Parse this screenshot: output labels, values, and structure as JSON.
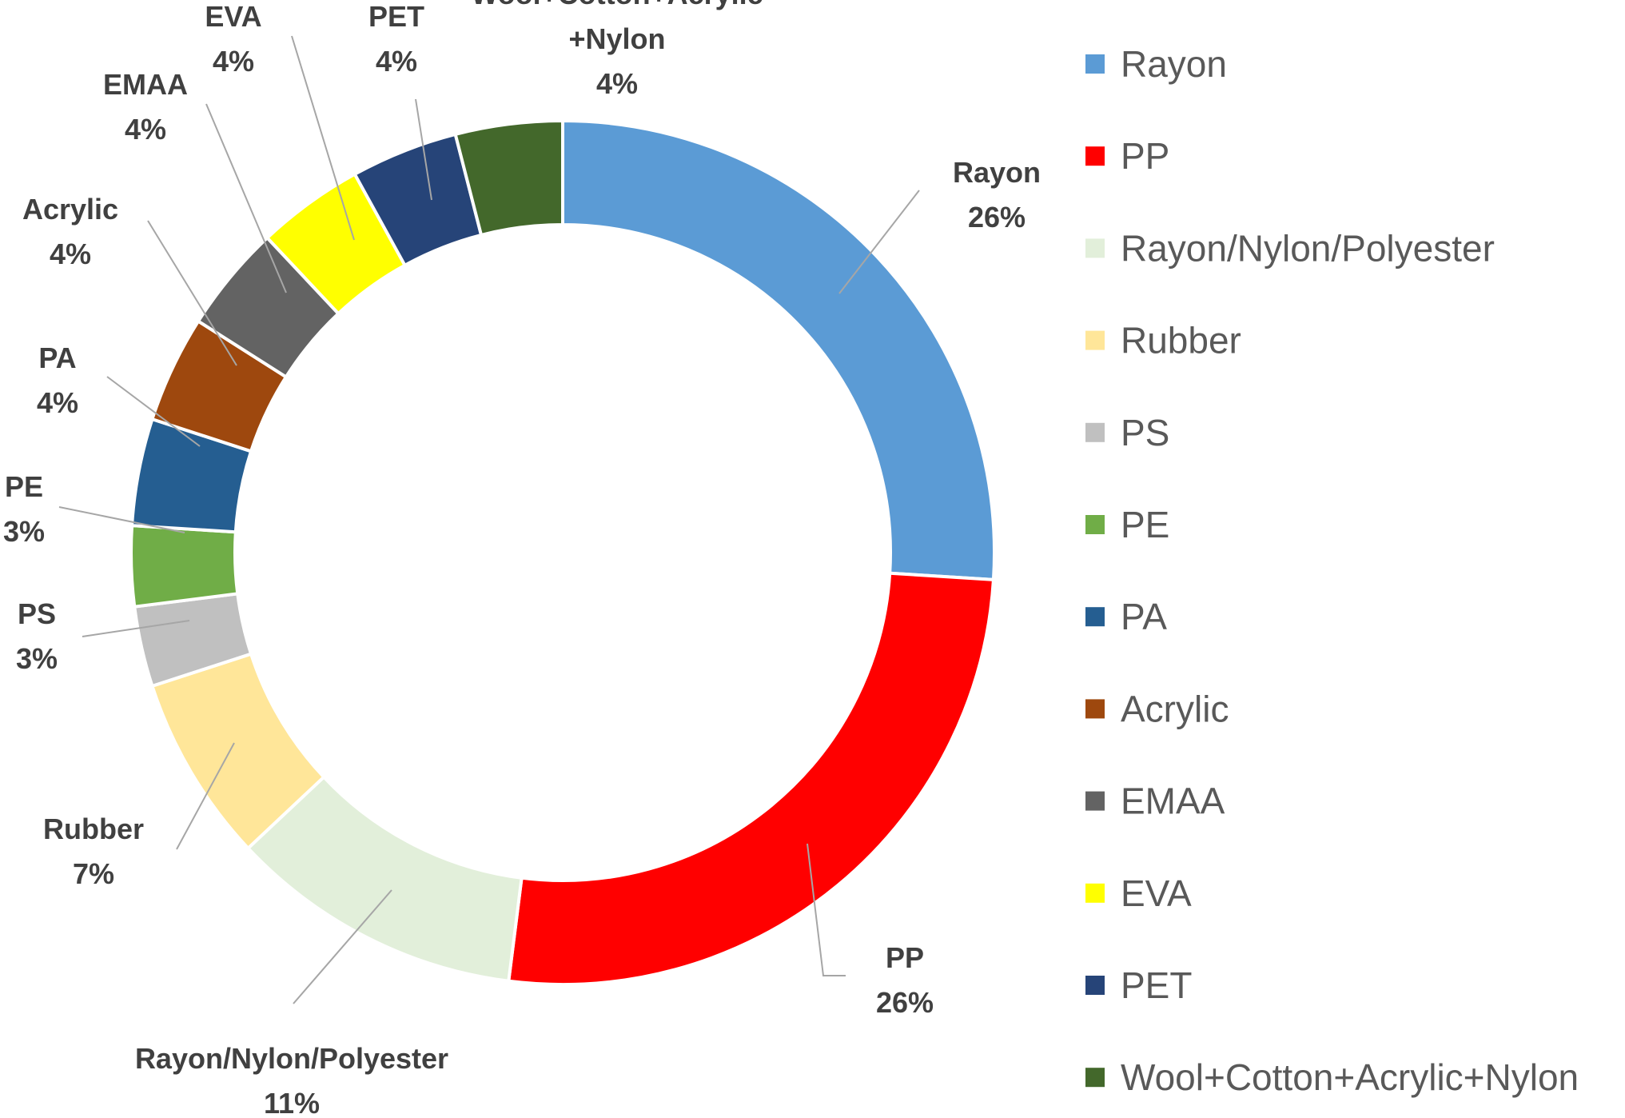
{
  "chart_data": {
    "type": "pie",
    "variant": "doughnut",
    "start_angle": "top, clockwise",
    "legend_position": "right",
    "slices": [
      {
        "label": "Rayon",
        "legend": "Rayon",
        "percent": "26%",
        "value": 26,
        "color": "#5B9BD5",
        "data_label": [
          "Rayon",
          "26%"
        ]
      },
      {
        "label": "PP",
        "legend": "PP",
        "percent": "26%",
        "value": 26,
        "color": "#FF0000",
        "data_label": [
          "PP",
          "26%"
        ]
      },
      {
        "label": "Rayon/Nylon/Polyester",
        "legend": "Rayon/Nylon/Polyester",
        "percent": "11%",
        "value": 11,
        "color": "#E2EFDA",
        "data_label": [
          "Rayon/Nylon/Polyester",
          "11%"
        ]
      },
      {
        "label": "Rubber",
        "legend": "Rubber",
        "percent": "7%",
        "value": 7,
        "color": "#FFE699",
        "data_label": [
          "Rubber",
          "7%"
        ]
      },
      {
        "label": "PS",
        "legend": "PS",
        "percent": "3%",
        "value": 3,
        "color": "#C0C0C0",
        "data_label": [
          "PS",
          "3%"
        ]
      },
      {
        "label": "PE",
        "legend": "PE",
        "percent": "3%",
        "value": 3,
        "color": "#70AD47",
        "data_label": [
          "PE",
          "3%"
        ]
      },
      {
        "label": "PA",
        "legend": "PA",
        "percent": "4%",
        "value": 4,
        "color": "#255E91",
        "data_label": [
          "PA",
          "4%"
        ]
      },
      {
        "label": "Acrylic",
        "legend": "Acrylic",
        "percent": "4%",
        "value": 4,
        "color": "#9E480E",
        "data_label": [
          "Acrylic",
          "4%"
        ]
      },
      {
        "label": "EMAA",
        "legend": "EMAA",
        "percent": "4%",
        "value": 4,
        "color": "#636363",
        "data_label": [
          "EMAA",
          "4%"
        ]
      },
      {
        "label": "EVA",
        "legend": "EVA",
        "percent": "4%",
        "value": 4,
        "color": "#FFFF00",
        "data_label": [
          "EVA",
          "4%"
        ]
      },
      {
        "label": "PET",
        "legend": "PET",
        "percent": "4%",
        "value": 4,
        "color": "#264478",
        "data_label": [
          "PET",
          "4%"
        ]
      },
      {
        "label": "Wool+Cotton+Acrylic+Nylon",
        "legend": "Wool+Cotton+Acrylic+Nylon",
        "percent": "4%",
        "value": 4,
        "color": "#43682B",
        "data_label": [
          "Wool+Cotton+Acrylic",
          "+Nylon",
          "4%"
        ]
      }
    ]
  }
}
